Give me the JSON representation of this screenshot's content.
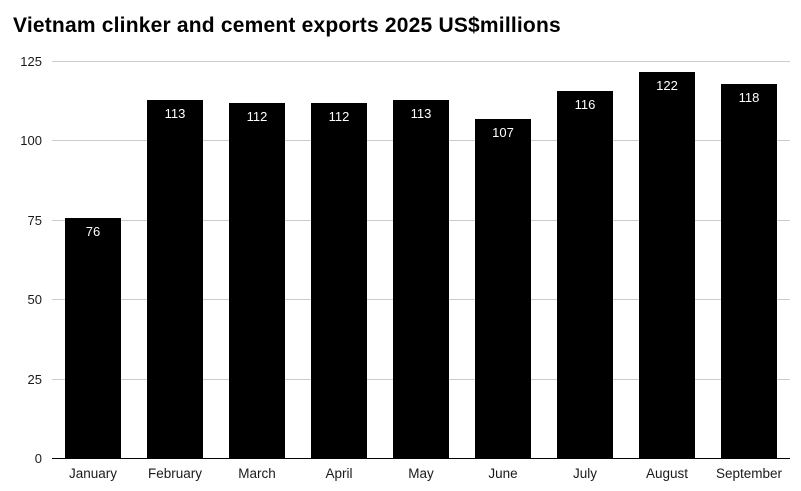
{
  "chart_data": {
    "type": "bar",
    "title": "Vietnam clinker and cement exports 2025 US$millions",
    "categories": [
      "January",
      "February",
      "March",
      "April",
      "May",
      "June",
      "July",
      "August",
      "September"
    ],
    "values": [
      76,
      113,
      112,
      112,
      113,
      107,
      116,
      122,
      118
    ],
    "xlabel": "",
    "ylabel": "",
    "ylim": [
      0,
      125
    ],
    "yticks": [
      0,
      25,
      50,
      75,
      100,
      125
    ],
    "grid": true,
    "legend": "none",
    "bar_color": "#000000",
    "value_label_color": "#ffffff",
    "gridline_color": "#cccccc",
    "axis_label_color": "#1a1a1a"
  }
}
